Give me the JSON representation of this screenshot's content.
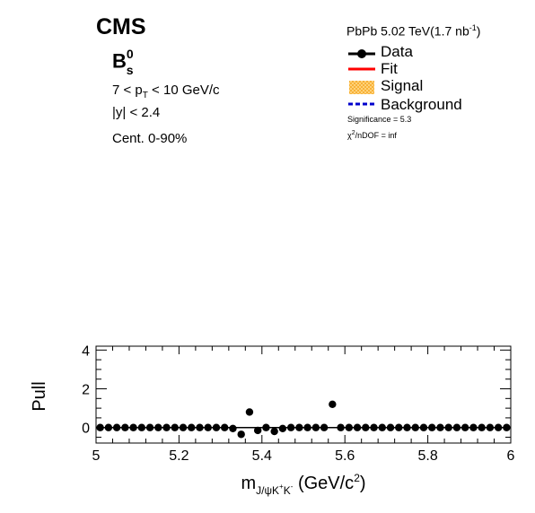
{
  "header": {
    "experiment": "CMS",
    "particle": {
      "base": "B",
      "sub": "s",
      "sup": "0"
    },
    "pt_cut": {
      "pre": "7 < p",
      "sub": "T",
      "post": " < 10 GeV/c"
    },
    "y_cut": "|y| < 2.4",
    "centrality": "Cent. 0-90%",
    "lumi": {
      "text": "PbPb 5.02 TeV(1.7 nb",
      "sup": "-1",
      "close": ")"
    }
  },
  "legend": {
    "position": "top-right",
    "entries": [
      {
        "label": "Data",
        "style": "marker-line",
        "color": "#000000"
      },
      {
        "label": "Fit",
        "style": "line",
        "color": "#ff0000"
      },
      {
        "label": "Signal",
        "style": "hatched",
        "color": "#f5a623"
      },
      {
        "label": "Background",
        "style": "dashed",
        "color": "#0000cc"
      }
    ]
  },
  "stats": {
    "significance": "Significance = 5.3",
    "chi2": {
      "pre": "χ",
      "sup": "2",
      "post": "/nDOF = inf"
    }
  },
  "chart_data": {
    "type": "scatter",
    "ylabel": "Pull",
    "xlabel": {
      "pre": "m",
      "sub": "J/ψK",
      "subsup1": "+",
      "subk": "K",
      "subsup2": "-",
      "post": " (GeV/c",
      "sup": "2",
      "close": ")"
    },
    "xlim": [
      5,
      6
    ],
    "ylim": [
      -0.8,
      4.2
    ],
    "x_ticks": [
      "5",
      "5.2",
      "5.4",
      "5.6",
      "5.8",
      "6"
    ],
    "x_tick_values": [
      5,
      5.2,
      5.4,
      5.6,
      5.8,
      6
    ],
    "y_ticks": [
      "0",
      "2",
      "4"
    ],
    "y_tick_values": [
      0,
      2,
      4
    ],
    "reference_line": 0,
    "series": [
      {
        "x": [
          5.01,
          5.03,
          5.05,
          5.07,
          5.09,
          5.11,
          5.13,
          5.15,
          5.17,
          5.19,
          5.21,
          5.23,
          5.25,
          5.27,
          5.29,
          5.31,
          5.33,
          5.35,
          5.37,
          5.39,
          5.41,
          5.43,
          5.45,
          5.47,
          5.49,
          5.51,
          5.53,
          5.55,
          5.57,
          5.59,
          5.61,
          5.63,
          5.65,
          5.67,
          5.69,
          5.71,
          5.73,
          5.75,
          5.77,
          5.79,
          5.81,
          5.83,
          5.85,
          5.87,
          5.89,
          5.91,
          5.93,
          5.95,
          5.97,
          5.99
        ],
        "y": [
          0,
          0,
          0,
          0,
          0,
          0,
          0,
          0,
          0,
          0,
          0,
          0,
          0,
          0,
          0,
          0,
          -0.05,
          -0.35,
          0.8,
          -0.15,
          0,
          -0.2,
          -0.05,
          0,
          0,
          0,
          0,
          0,
          1.2,
          0,
          0,
          0,
          0,
          0,
          0,
          0,
          0,
          0,
          0,
          0,
          0,
          0,
          0,
          0,
          0,
          0,
          0,
          0,
          0,
          0
        ]
      }
    ]
  }
}
